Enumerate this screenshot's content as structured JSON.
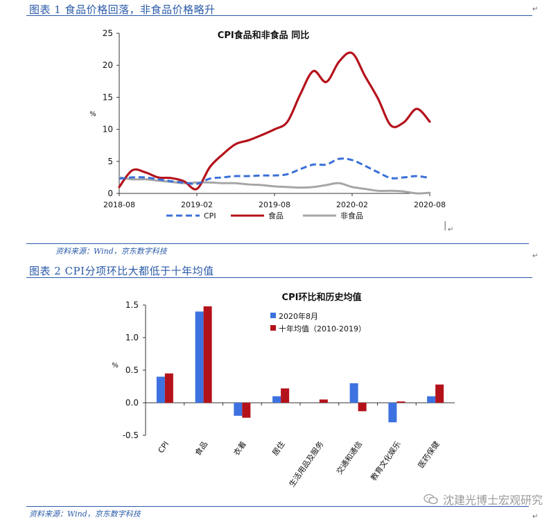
{
  "figure1": {
    "title": "图表 1 食品价格回落，非食品价格略升",
    "source": "资料来源：Wind，京东数字科技",
    "return_mark": "↵",
    "chart_data": {
      "type": "line",
      "title": "CPI食品和非食品 同比",
      "ylabel": "%",
      "ylim": [
        0,
        25
      ],
      "yticks": [
        0,
        5,
        10,
        15,
        20,
        25
      ],
      "xticks": [
        "2018-08",
        "2019-02",
        "2019-08",
        "2020-02",
        "2020-08"
      ],
      "x": [
        "2018-08",
        "2018-09",
        "2018-10",
        "2018-11",
        "2018-12",
        "2019-01",
        "2019-02",
        "2019-03",
        "2019-04",
        "2019-05",
        "2019-06",
        "2019-07",
        "2019-08",
        "2019-09",
        "2019-10",
        "2019-11",
        "2019-12",
        "2020-01",
        "2020-02",
        "2020-03",
        "2020-04",
        "2020-05",
        "2020-06",
        "2020-07",
        "2020-08"
      ],
      "series": [
        {
          "name": "CPI",
          "color": "#3a6fd8",
          "dash": true,
          "values": [
            2.3,
            2.5,
            2.5,
            2.2,
            1.9,
            1.7,
            1.5,
            2.3,
            2.5,
            2.7,
            2.7,
            2.8,
            2.8,
            3.0,
            3.8,
            4.5,
            4.5,
            5.4,
            5.2,
            4.3,
            3.3,
            2.4,
            2.5,
            2.7,
            2.4
          ]
        },
        {
          "name": "食品",
          "color": "#b4121b",
          "dash": false,
          "values": [
            1.0,
            3.6,
            3.3,
            2.5,
            2.4,
            1.9,
            0.7,
            4.1,
            6.1,
            7.7,
            8.3,
            9.1,
            10.0,
            11.2,
            15.5,
            19.1,
            17.4,
            20.6,
            21.9,
            18.3,
            14.8,
            10.6,
            11.1,
            13.2,
            11.2
          ]
        },
        {
          "name": "非食品",
          "color": "#a6a6a6",
          "dash": false,
          "values": [
            2.5,
            2.2,
            2.2,
            2.0,
            1.8,
            1.6,
            1.7,
            1.7,
            1.6,
            1.6,
            1.4,
            1.3,
            1.1,
            1.0,
            0.9,
            1.0,
            1.3,
            1.6,
            1.0,
            0.7,
            0.4,
            0.4,
            0.3,
            0.0,
            0.1
          ]
        }
      ]
    }
  },
  "figure2": {
    "title": "图表 2 CPI分项环比大都低于十年均值",
    "source": "资料来源：Wind，京东数字科技",
    "return_mark": "↵",
    "chart_data": {
      "type": "bar",
      "title": "CPI环比和历史均值",
      "ylabel": "%",
      "ylim": [
        -0.5,
        1.5
      ],
      "yticks": [
        -0.5,
        0.0,
        0.5,
        1.0,
        1.5
      ],
      "ytick_labels": [
        "-0.5",
        "0.0",
        "0.5",
        "1.0",
        "1.5"
      ],
      "categories": [
        "CPI",
        "食品",
        "衣着",
        "居住",
        "生活用品及服务",
        "交通和通信",
        "教育文化娱乐",
        "医药保健"
      ],
      "series": [
        {
          "name": "2020年8月",
          "color": "#3d72e0",
          "values": [
            0.4,
            1.4,
            -0.2,
            0.1,
            0.0,
            0.3,
            -0.3,
            0.1
          ]
        },
        {
          "name": "十年均值（2010-2019）",
          "color": "#b4121b",
          "values": [
            0.45,
            1.48,
            -0.23,
            0.22,
            0.05,
            -0.13,
            0.02,
            0.28
          ]
        }
      ]
    }
  },
  "watermark": {
    "text": "沈建光博士宏观研究",
    "icon": "wechat-icon"
  }
}
